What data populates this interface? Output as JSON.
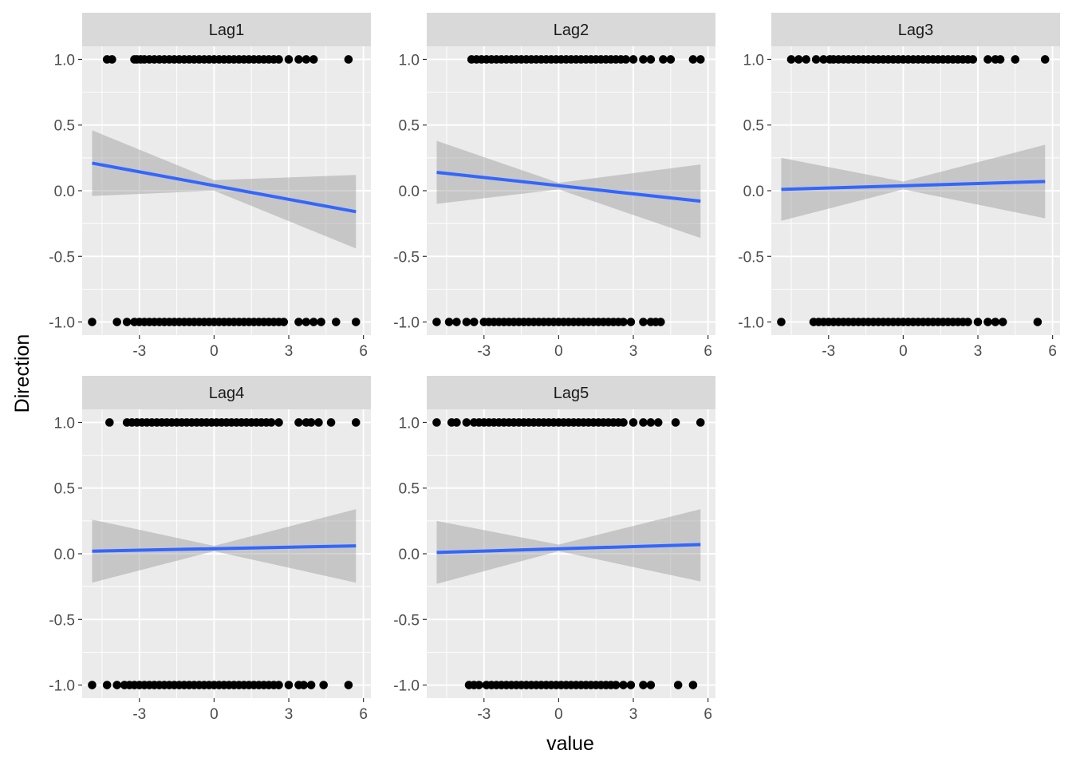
{
  "chart_data": {
    "type": "scatter",
    "layout": "facet-wrap",
    "xlabel": "value",
    "ylabel": "Direction",
    "xlim": [
      -5.3,
      6.3
    ],
    "ylim": [
      -1.1,
      1.1
    ],
    "x_ticks": [
      -3,
      0,
      3,
      6
    ],
    "x_tick_labels": [
      "-3",
      "0",
      "3",
      "6"
    ],
    "y_ticks": [
      -1.0,
      -0.5,
      0.0,
      0.5,
      1.0
    ],
    "y_tick_labels": [
      "-1.0",
      "-0.5",
      "0.0",
      "0.5",
      "1.0"
    ],
    "colors": {
      "panel_bg": "#ebebeb",
      "strip_bg": "#d9d9d9",
      "grid": "#ffffff",
      "point": "#000000",
      "fit_line": "#3366ff",
      "ribbon": "#999999"
    },
    "panels": [
      {
        "label": "Lag1",
        "points_up": [
          -4.3,
          -4.1,
          -3.2,
          -3.1,
          -2.95,
          -2.8,
          -2.6,
          -2.4,
          -2.2,
          -2.0,
          -1.8,
          -1.6,
          -1.4,
          -1.2,
          -1.0,
          -0.8,
          -0.6,
          -0.4,
          -0.2,
          0.0,
          0.2,
          0.4,
          0.6,
          0.8,
          1.0,
          1.2,
          1.4,
          1.6,
          1.8,
          2.0,
          2.2,
          2.4,
          2.6,
          3.0,
          3.4,
          3.7,
          4.0,
          5.4
        ],
        "points_down": [
          -4.9,
          -3.9,
          -3.5,
          -3.2,
          -3.0,
          -2.8,
          -2.6,
          -2.4,
          -2.2,
          -2.0,
          -1.8,
          -1.6,
          -1.4,
          -1.2,
          -1.0,
          -0.8,
          -0.6,
          -0.4,
          -0.2,
          0.0,
          0.2,
          0.4,
          0.6,
          0.8,
          1.0,
          1.2,
          1.4,
          1.6,
          1.8,
          2.0,
          2.2,
          2.4,
          2.6,
          2.8,
          3.4,
          3.7,
          4.0,
          4.3,
          4.9,
          5.7
        ],
        "fit": {
          "x0": -4.9,
          "y0": 0.21,
          "x1": 5.7,
          "y1": -0.16
        },
        "ribbon": [
          [
            -4.9,
            0.46,
            -0.04
          ],
          [
            0.0,
            0.08,
            0.0
          ],
          [
            5.7,
            0.12,
            -0.44
          ]
        ]
      },
      {
        "label": "Lag2",
        "points_up": [
          -3.5,
          -3.3,
          -3.1,
          -2.9,
          -2.7,
          -2.5,
          -2.3,
          -2.1,
          -1.9,
          -1.7,
          -1.5,
          -1.3,
          -1.1,
          -0.9,
          -0.7,
          -0.5,
          -0.3,
          -0.1,
          0.1,
          0.3,
          0.5,
          0.7,
          0.9,
          1.1,
          1.3,
          1.5,
          1.7,
          1.9,
          2.1,
          2.3,
          2.5,
          2.7,
          3.0,
          3.4,
          3.7,
          4.2,
          4.5,
          5.4,
          5.7
        ],
        "points_down": [
          -4.9,
          -4.4,
          -4.1,
          -3.7,
          -3.4,
          -3.0,
          -2.8,
          -2.6,
          -2.4,
          -2.2,
          -2.0,
          -1.8,
          -1.6,
          -1.4,
          -1.2,
          -1.0,
          -0.8,
          -0.6,
          -0.4,
          -0.2,
          0.0,
          0.2,
          0.4,
          0.6,
          0.8,
          1.0,
          1.2,
          1.4,
          1.6,
          1.8,
          2.0,
          2.2,
          2.4,
          2.6,
          2.9,
          3.4,
          3.7,
          3.9,
          4.1
        ],
        "fit": {
          "x0": -4.9,
          "y0": 0.14,
          "x1": 5.7,
          "y1": -0.08
        },
        "ribbon": [
          [
            -4.9,
            0.38,
            -0.1
          ],
          [
            0.0,
            0.06,
            0.01
          ],
          [
            5.7,
            0.2,
            -0.36
          ]
        ]
      },
      {
        "label": "Lag3",
        "points_up": [
          -4.5,
          -4.2,
          -3.9,
          -3.5,
          -3.2,
          -2.95,
          -2.8,
          -2.6,
          -2.4,
          -2.2,
          -2.0,
          -1.8,
          -1.6,
          -1.4,
          -1.2,
          -1.0,
          -0.8,
          -0.6,
          -0.4,
          -0.2,
          0.0,
          0.2,
          0.4,
          0.6,
          0.8,
          1.0,
          1.2,
          1.4,
          1.6,
          1.8,
          2.0,
          2.2,
          2.4,
          2.6,
          2.8,
          3.4,
          3.7,
          3.9,
          4.5,
          5.7
        ],
        "points_down": [
          -4.9,
          -3.6,
          -3.4,
          -3.2,
          -3.0,
          -2.8,
          -2.6,
          -2.4,
          -2.2,
          -2.0,
          -1.8,
          -1.6,
          -1.4,
          -1.2,
          -1.0,
          -0.8,
          -0.6,
          -0.4,
          -0.2,
          0.0,
          0.2,
          0.4,
          0.6,
          0.8,
          1.0,
          1.2,
          1.4,
          1.6,
          1.8,
          2.0,
          2.2,
          2.4,
          2.6,
          3.0,
          3.4,
          3.7,
          4.0,
          5.4
        ],
        "fit": {
          "x0": -4.9,
          "y0": 0.01,
          "x1": 5.7,
          "y1": 0.07
        },
        "ribbon": [
          [
            -4.9,
            0.25,
            -0.23
          ],
          [
            0.0,
            0.07,
            0.01
          ],
          [
            5.7,
            0.35,
            -0.21
          ]
        ]
      },
      {
        "label": "Lag4",
        "points_up": [
          -4.2,
          -3.5,
          -3.3,
          -3.1,
          -2.9,
          -2.7,
          -2.5,
          -2.3,
          -2.1,
          -1.9,
          -1.7,
          -1.5,
          -1.3,
          -1.1,
          -0.9,
          -0.7,
          -0.5,
          -0.3,
          -0.1,
          0.1,
          0.3,
          0.5,
          0.7,
          0.9,
          1.1,
          1.3,
          1.5,
          1.7,
          1.9,
          2.1,
          2.3,
          2.6,
          3.4,
          3.7,
          3.9,
          4.2,
          4.7,
          5.7
        ],
        "points_down": [
          -4.9,
          -4.3,
          -3.9,
          -3.6,
          -3.4,
          -3.2,
          -3.0,
          -2.8,
          -2.6,
          -2.4,
          -2.2,
          -2.0,
          -1.8,
          -1.6,
          -1.4,
          -1.2,
          -1.0,
          -0.8,
          -0.6,
          -0.4,
          -0.2,
          0.0,
          0.2,
          0.4,
          0.6,
          0.8,
          1.0,
          1.2,
          1.4,
          1.6,
          1.8,
          2.0,
          2.2,
          2.4,
          2.6,
          3.0,
          3.4,
          3.6,
          3.9,
          4.4,
          5.4
        ],
        "fit": {
          "x0": -4.9,
          "y0": 0.02,
          "x1": 5.7,
          "y1": 0.06
        },
        "ribbon": [
          [
            -4.9,
            0.26,
            -0.22
          ],
          [
            0.0,
            0.06,
            0.02
          ],
          [
            5.7,
            0.34,
            -0.22
          ]
        ]
      },
      {
        "label": "Lag5",
        "points_up": [
          -4.9,
          -4.3,
          -4.1,
          -3.7,
          -3.4,
          -3.2,
          -3.0,
          -2.8,
          -2.6,
          -2.4,
          -2.2,
          -2.0,
          -1.8,
          -1.6,
          -1.4,
          -1.2,
          -1.0,
          -0.8,
          -0.6,
          -0.4,
          -0.2,
          0.0,
          0.2,
          0.4,
          0.6,
          0.8,
          1.0,
          1.2,
          1.4,
          1.6,
          1.8,
          2.0,
          2.2,
          2.4,
          2.6,
          3.0,
          3.4,
          3.7,
          4.0,
          4.7,
          5.7
        ],
        "points_down": [
          -3.6,
          -3.4,
          -3.2,
          -2.9,
          -2.7,
          -2.5,
          -2.3,
          -2.1,
          -1.9,
          -1.7,
          -1.5,
          -1.3,
          -1.1,
          -0.9,
          -0.7,
          -0.5,
          -0.3,
          -0.1,
          0.1,
          0.3,
          0.5,
          0.7,
          0.9,
          1.1,
          1.3,
          1.5,
          1.7,
          1.9,
          2.1,
          2.3,
          2.6,
          2.9,
          3.4,
          3.7,
          4.8,
          5.4
        ],
        "fit": {
          "x0": -4.9,
          "y0": 0.01,
          "x1": 5.7,
          "y1": 0.07
        },
        "ribbon": [
          [
            -4.9,
            0.25,
            -0.23
          ],
          [
            0.0,
            0.07,
            0.02
          ],
          [
            5.7,
            0.34,
            -0.21
          ]
        ]
      }
    ]
  }
}
